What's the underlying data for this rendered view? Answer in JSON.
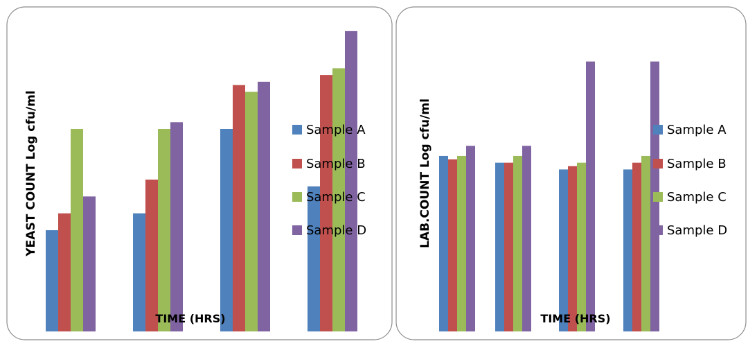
{
  "chart_data": [
    {
      "type": "bar",
      "categories": [
        "",
        "",
        "",
        ""
      ],
      "xlabel": "TIME (HRS)",
      "ylabel": "YEAST COUNT Log cfu/ml",
      "ylim": [
        0,
        9
      ],
      "grid": false,
      "legend_position": "right",
      "series": [
        {
          "name": "Sample A",
          "color": "#4F81BD",
          "values": [
            3.0,
            3.5,
            6.0,
            4.3
          ]
        },
        {
          "name": "Sample B",
          "color": "#C0504D",
          "values": [
            3.5,
            4.5,
            7.3,
            7.6
          ]
        },
        {
          "name": "Sample C",
          "color": "#9BBB59",
          "values": [
            6.0,
            6.0,
            7.1,
            7.8
          ]
        },
        {
          "name": "Sample D",
          "color": "#8064A2",
          "values": [
            4.0,
            6.2,
            7.4,
            8.9
          ]
        }
      ]
    },
    {
      "type": "bar",
      "categories": [
        "",
        "",
        "",
        ""
      ],
      "xlabel": "TIME (HRS)",
      "ylabel": "LAB.COUNT Log cfu/ml",
      "ylim": [
        0,
        9
      ],
      "grid": false,
      "legend_position": "right",
      "series": [
        {
          "name": "Sample A",
          "color": "#4F81BD",
          "values": [
            5.2,
            5.0,
            4.8,
            4.8
          ]
        },
        {
          "name": "Sample B",
          "color": "#C0504D",
          "values": [
            5.1,
            5.0,
            4.9,
            5.0
          ]
        },
        {
          "name": "Sample C",
          "color": "#9BBB59",
          "values": [
            5.2,
            5.2,
            5.0,
            5.2
          ]
        },
        {
          "name": "Sample D",
          "color": "#8064A2",
          "values": [
            5.5,
            5.5,
            8.0,
            8.0
          ]
        }
      ]
    }
  ]
}
